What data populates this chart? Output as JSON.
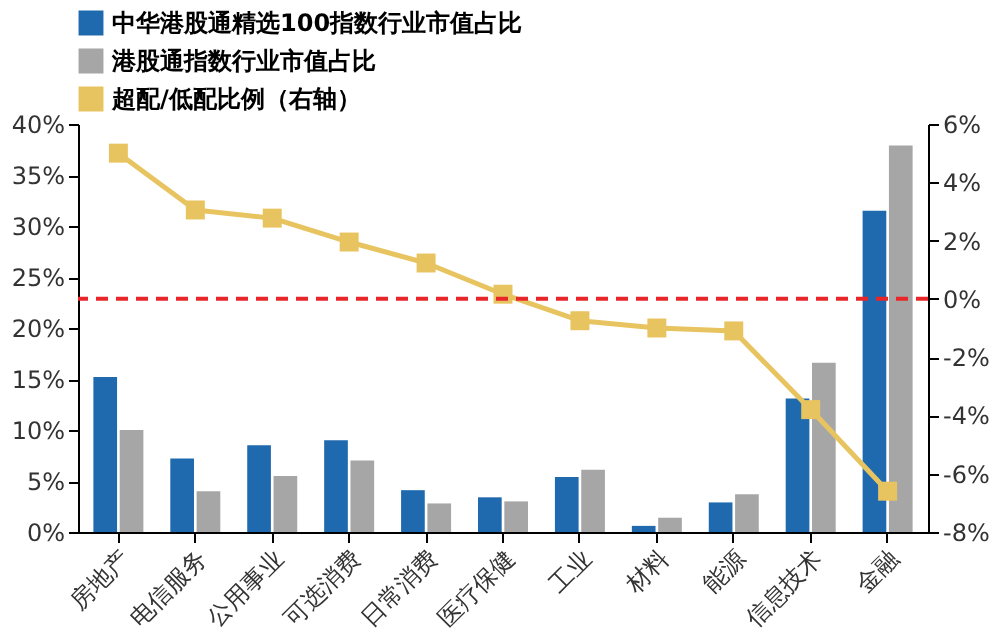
{
  "chart_data": {
    "type": "bar",
    "categories": [
      "房地产",
      "电信服务",
      "公用事业",
      "可选消费",
      "日常消费",
      "医疗保健",
      "工业",
      "材料",
      "能源",
      "信息技术",
      "金融"
    ],
    "series": [
      {
        "name": "中华港股通精选100指数行业市值占比",
        "color": "#1f6aae",
        "values": [
          15.2,
          7.2,
          8.5,
          9.0,
          4.1,
          3.4,
          5.4,
          0.6,
          2.9,
          13.1,
          31.5
        ]
      },
      {
        "name": "港股通指数行业市值占比",
        "color": "#a6a6a6",
        "values": [
          10.0,
          4.0,
          5.5,
          7.0,
          2.8,
          3.0,
          6.1,
          1.4,
          3.7,
          16.6,
          37.9
        ]
      },
      {
        "name": "超配/低配比例（右轴）",
        "type": "line",
        "axis": "y2",
        "color": "#e8c460",
        "marker": "square",
        "values": [
          5.0,
          3.05,
          2.77,
          1.95,
          1.23,
          0.16,
          -0.75,
          -1.0,
          -1.1,
          -3.8,
          -6.6
        ]
      }
    ],
    "ylim": [
      0,
      40
    ],
    "yticks": [
      {
        "value": 0,
        "label": "0%"
      },
      {
        "value": 5,
        "label": "5%"
      },
      {
        "value": 10,
        "label": "10%"
      },
      {
        "value": 15,
        "label": "15%"
      },
      {
        "value": 20,
        "label": "20%"
      },
      {
        "value": 25,
        "label": "25%"
      },
      {
        "value": 30,
        "label": "30%"
      },
      {
        "value": 35,
        "label": "35%"
      },
      {
        "value": 40,
        "label": "40%"
      }
    ],
    "y2lim": [
      -8,
      6
    ],
    "y2ticks": [
      {
        "value": -8,
        "label": "-8%"
      },
      {
        "value": -6,
        "label": "-6%"
      },
      {
        "value": -4,
        "label": "-4%"
      },
      {
        "value": -2,
        "label": "-2%"
      },
      {
        "value": 0,
        "label": "0%"
      },
      {
        "value": 2,
        "label": "2%"
      },
      {
        "value": 4,
        "label": "4%"
      },
      {
        "value": 6,
        "label": "6%"
      }
    ],
    "ref_lines": [
      {
        "axis": "y2",
        "value": 0,
        "color": "#e8262a",
        "line_style": "dashed"
      }
    ],
    "legend": "top",
    "grid": false
  }
}
